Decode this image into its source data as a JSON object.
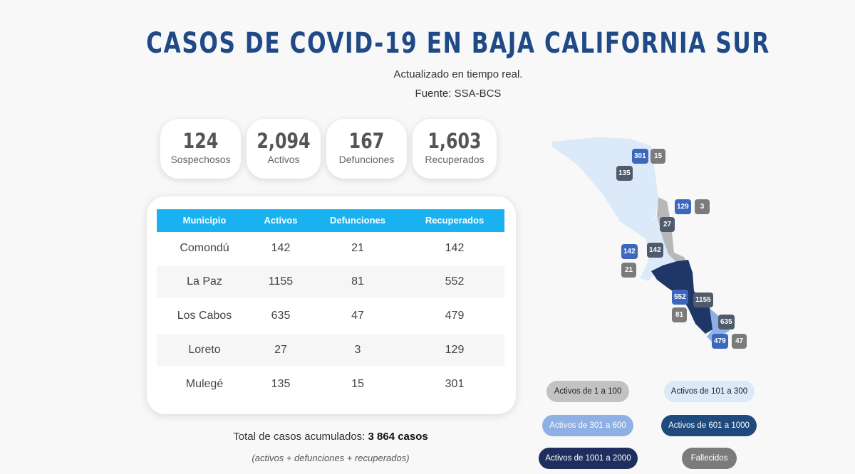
{
  "header": {
    "title": "CASOS DE COVID-19 EN BAJA CALIFORNIA SUR",
    "subtitle": "Actualizado en tiempo real.",
    "source": "Fuente: SSA-BCS"
  },
  "stats": [
    {
      "value": "124",
      "label": "Sospechosos"
    },
    {
      "value": "2,094",
      "label": "Activos"
    },
    {
      "value": "167",
      "label": "Defunciones"
    },
    {
      "value": "1,603",
      "label": "Recuperados"
    }
  ],
  "table": {
    "headers": [
      "Municipio",
      "Activos",
      "Defunciones",
      "Recuperados"
    ],
    "rows": [
      [
        "Comondú",
        "142",
        "21",
        "142"
      ],
      [
        "La Paz",
        "1155",
        "81",
        "552"
      ],
      [
        "Los Cabos",
        "635",
        "47",
        "479"
      ],
      [
        "Loreto",
        "27",
        "3",
        "129"
      ],
      [
        "Mulegé",
        "135",
        "15",
        "301"
      ]
    ]
  },
  "totals": {
    "label": "Total de casos acumulados:",
    "value": "3 864 casos",
    "note": "(activos + defunciones + recuperados)"
  },
  "map": {
    "badges": [
      "301",
      "15",
      "135",
      "129",
      "3",
      "27",
      "142",
      "142",
      "21",
      "552",
      "1155",
      "81",
      "635",
      "479",
      "47"
    ]
  },
  "legend": [
    {
      "label": "Activos de 1 a 100",
      "bg": "#c2c2c2",
      "fg": "#222222"
    },
    {
      "label": "Activos de 101 a 300",
      "bg": "#dbe9f8",
      "fg": "#222222"
    },
    {
      "label": "Activos de 301 a 600",
      "bg": "#8fb0e4",
      "fg": "#ffffff"
    },
    {
      "label": "Activos de 601 a 1000",
      "bg": "#1f4a7d",
      "fg": "#ffffff"
    },
    {
      "label": "Activos de 1001 a 2000",
      "bg": "#1f2e5e",
      "fg": "#ffffff"
    },
    {
      "label": "Fallecidos",
      "bg": "#7b7b7b",
      "fg": "#ffffff"
    }
  ]
}
